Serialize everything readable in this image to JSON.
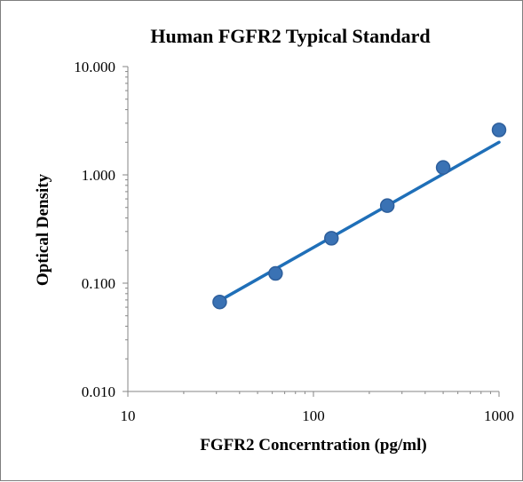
{
  "chart_data": {
    "type": "scatter",
    "title": "Human  FGFR2 Typical Standard",
    "xlabel": "FGFR2 Concerntration (pg/ml)",
    "ylabel": "Optical Density",
    "xscale": "log",
    "yscale": "log",
    "xlim": [
      10,
      1000
    ],
    "ylim": [
      0.01,
      10
    ],
    "x_tick_labels": [
      "10",
      "100",
      "1000"
    ],
    "y_tick_labels": [
      "0.010",
      "0.100",
      "1.000",
      "10.000"
    ],
    "grid": false,
    "legend": "none",
    "series": [
      {
        "x": [
          31.25,
          62.5,
          125,
          250,
          500,
          1000
        ],
        "y": [
          0.067,
          0.123,
          0.26,
          0.52,
          1.17,
          2.6
        ],
        "marker_color": "#3a72b4",
        "marker_edge": "#2e5f9c",
        "trendline": {
          "type": "power",
          "x_range": [
            31.25,
            1000
          ],
          "y_range": [
            0.069,
            2.0
          ],
          "color": "#1f6fb8"
        }
      }
    ]
  }
}
